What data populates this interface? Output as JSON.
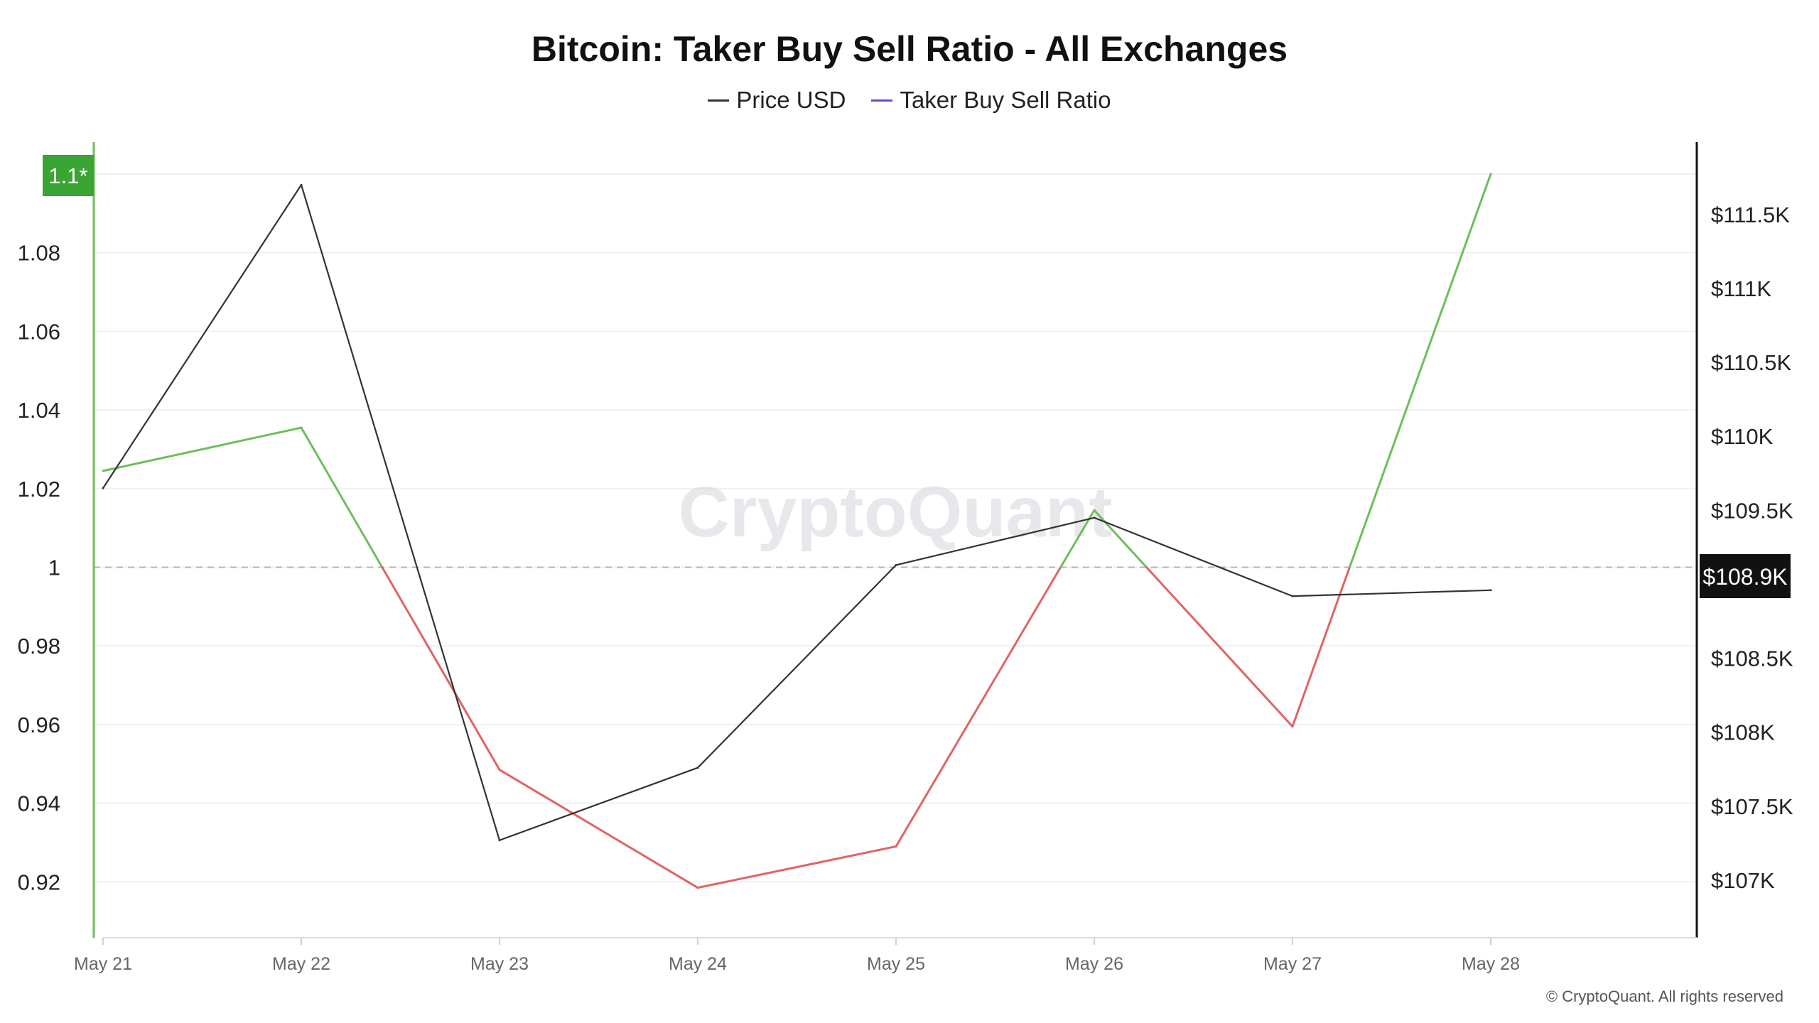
{
  "chart_data": {
    "type": "line",
    "title": "Bitcoin: Taker Buy Sell Ratio - All Exchanges",
    "categories": [
      "May 21",
      "May 22",
      "May 23",
      "May 24",
      "May 25",
      "May 26",
      "May 27",
      "May 28"
    ],
    "series": [
      {
        "name": "Price USD",
        "axis": "right",
        "color": "#333333",
        "values": [
          109650,
          111700,
          107270,
          107760,
          109130,
          109450,
          108920,
          108960
        ]
      },
      {
        "name": "Taker Buy Sell Ratio",
        "axis": "left",
        "color": "#5b4fd6",
        "color_above_1": "#6cbf5a",
        "color_below_1": "#e06464",
        "values": [
          1.0245,
          1.0355,
          0.9485,
          0.9185,
          0.929,
          1.0145,
          0.9595,
          1.1
        ]
      }
    ],
    "left_axis": {
      "ticks": [
        "0.92",
        "0.94",
        "0.96",
        "0.98",
        "1",
        "1.02",
        "1.04",
        "1.06",
        "1.08"
      ],
      "tick_values": [
        0.92,
        0.94,
        0.96,
        0.98,
        1.0,
        1.02,
        1.04,
        1.06,
        1.08
      ],
      "range": [
        0.9065,
        1.1074
      ],
      "current_badge": "1.1*",
      "reference_line": 1.0
    },
    "right_axis": {
      "ticks": [
        "$107K",
        "$107.5K",
        "$108K",
        "$108.5K",
        "$109K",
        "$109.5K",
        "$110K",
        "$110.5K",
        "$111K",
        "$111.5K"
      ],
      "tick_values": [
        107000,
        107500,
        108000,
        108500,
        109000,
        109500,
        110000,
        110500,
        111000,
        111500
      ],
      "range": [
        106630,
        111970
      ],
      "current_badge": "$108.9K"
    },
    "grid": true,
    "legend_position": "top-center",
    "watermark": "CryptoQuant",
    "copyright": "© CryptoQuant. All rights reserved"
  }
}
